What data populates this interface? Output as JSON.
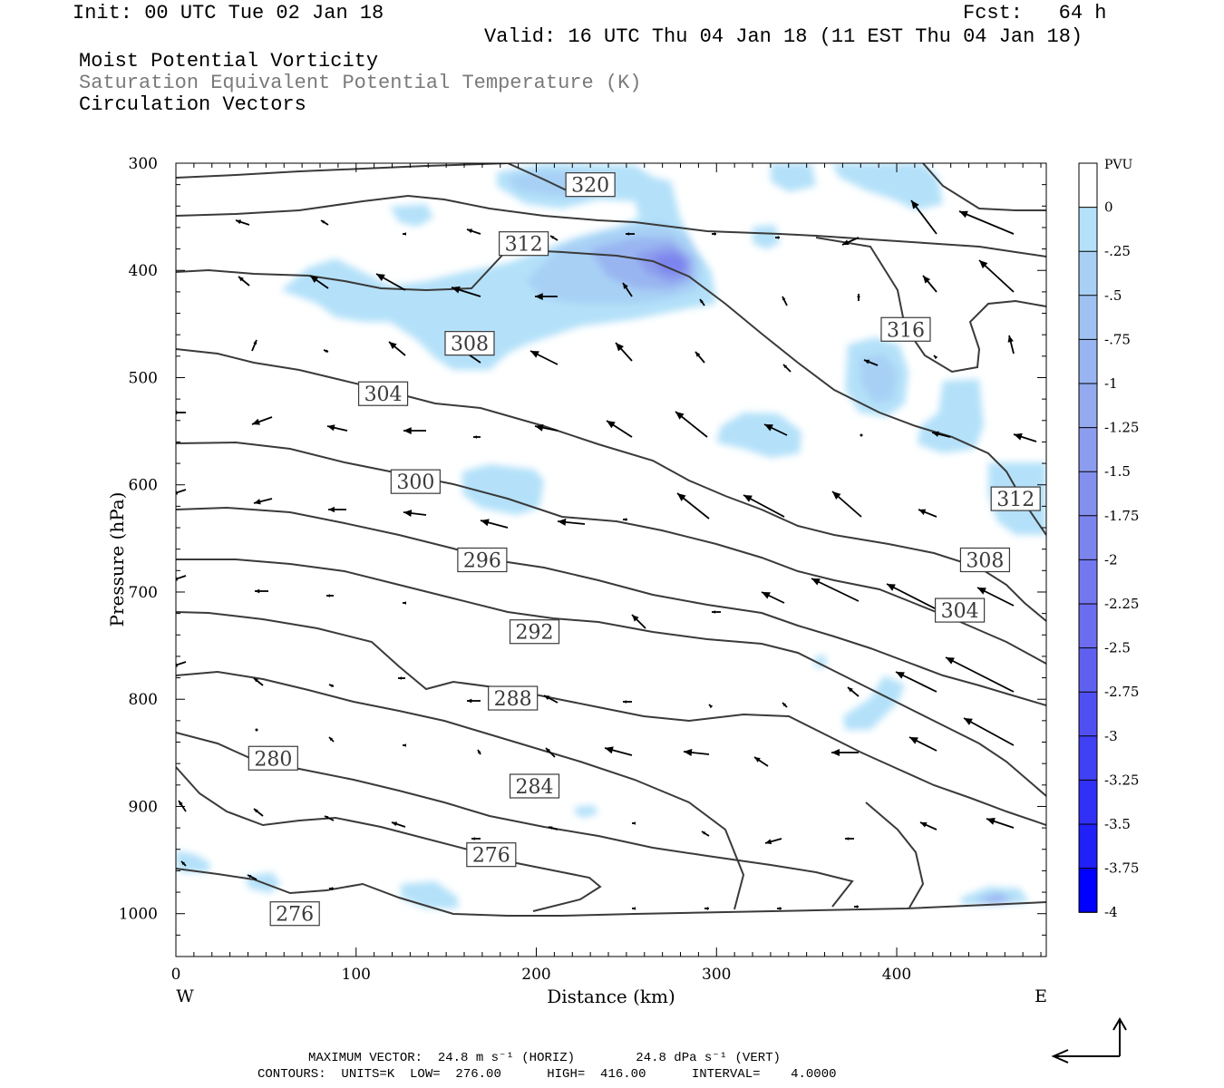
{
  "header": {
    "init": "Init: 00 UTC Tue 02 Jan 18",
    "fcst": "Fcst:   64 h",
    "valid": "Valid: 16 UTC Thu 04 Jan 18 (11 EST Thu 04 Jan 18)",
    "line1": "Moist Potential Vorticity",
    "line2": "Saturation Equivalent Potential Temperature (K)",
    "line3": "Circulation Vectors"
  },
  "footer": {
    "line1": "MAXIMUM VECTOR:  24.8 m s⁻¹ (HORIZ)        24.8 dPa s⁻¹ (VERT)",
    "line2": "CONTOURS:  UNITS=K  LOW=  276.00      HIGH=  416.00      INTERVAL=    4.0000"
  },
  "chart_data": {
    "type": "cross-section",
    "xlabel": "Distance (km)",
    "ylabel": "Pressure (hPa)",
    "xlim": [
      0,
      483
    ],
    "ylim": [
      1040,
      300
    ],
    "x_ticks": [
      "0",
      "100",
      "200",
      "300",
      "400"
    ],
    "y_ticks": [
      "300",
      "400",
      "500",
      "600",
      "700",
      "800",
      "900",
      "1000"
    ],
    "x_end_labels": {
      "west": "W",
      "east": "E"
    },
    "colorbar": {
      "title": "PVU",
      "labels": [
        "0",
        "-.25",
        "-.5",
        "-.75",
        "-1",
        "-1.25",
        "-1.5",
        "-1.75",
        "-2",
        "-2.25",
        "-2.5",
        "-2.75",
        "-3",
        "-3.25",
        "-3.5",
        "-3.75",
        "-4"
      ],
      "colors": [
        "#ffffff",
        "#b4e1f9",
        "#a8d0f5",
        "#a0c2f3",
        "#99b5f1",
        "#94a9ee",
        "#8c9cee",
        "#8490ee",
        "#7c84ee",
        "#7478ee",
        "#6c6cee",
        "#6060f0",
        "#5050f2",
        "#4040f4",
        "#3030f6",
        "#2020f8",
        "#0000ff"
      ]
    },
    "contour_labels": [
      {
        "text": "320",
        "x": 230,
        "p": 320
      },
      {
        "text": "312",
        "x": 193,
        "p": 375
      },
      {
        "text": "316",
        "x": 405,
        "p": 455
      },
      {
        "text": "308",
        "x": 163,
        "p": 468
      },
      {
        "text": "304",
        "x": 115,
        "p": 515
      },
      {
        "text": "300",
        "x": 133,
        "p": 597
      },
      {
        "text": "312",
        "x": 466,
        "p": 613
      },
      {
        "text": "308",
        "x": 449,
        "p": 670
      },
      {
        "text": "296",
        "x": 170,
        "p": 670
      },
      {
        "text": "304",
        "x": 435,
        "p": 717
      },
      {
        "text": "292",
        "x": 199,
        "p": 737
      },
      {
        "text": "288",
        "x": 187,
        "p": 799
      },
      {
        "text": "280",
        "x": 54,
        "p": 855
      },
      {
        "text": "284",
        "x": 199,
        "p": 881
      },
      {
        "text": "276",
        "x": 175,
        "p": 945
      },
      {
        "text": "276",
        "x": 66,
        "p": 1000
      }
    ],
    "max_vector": {
      "horiz": "24.8 m s⁻¹",
      "vert": "24.8 dPa s⁻¹"
    },
    "contour_spec": {
      "units": "K",
      "low": 276.0,
      "high": 416.0,
      "interval": 4.0
    }
  }
}
